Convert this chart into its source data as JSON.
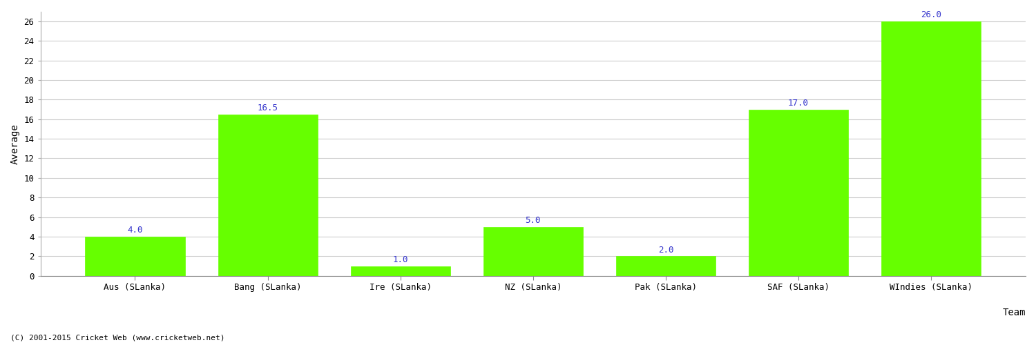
{
  "categories": [
    "Aus (SLanka)",
    "Bang (SLanka)",
    "Ire (SLanka)",
    "NZ (SLanka)",
    "Pak (SLanka)",
    "SAF (SLanka)",
    "WIndies (SLanka)"
  ],
  "values": [
    4.0,
    16.5,
    1.0,
    5.0,
    2.0,
    17.0,
    26.0
  ],
  "bar_color": "#66ff00",
  "bar_edge_color": "#66ff00",
  "value_color": "#3333cc",
  "xlabel": "Team",
  "ylabel": "Average",
  "ylim": [
    0,
    27
  ],
  "yticks": [
    0,
    2,
    4,
    6,
    8,
    10,
    12,
    14,
    16,
    18,
    20,
    22,
    24,
    26
  ],
  "grid_color": "#cccccc",
  "background_color": "#ffffff",
  "footer_text": "(C) 2001-2015 Cricket Web (www.cricketweb.net)",
  "label_fontsize": 10,
  "tick_fontsize": 9,
  "value_fontsize": 9,
  "footer_fontsize": 8
}
